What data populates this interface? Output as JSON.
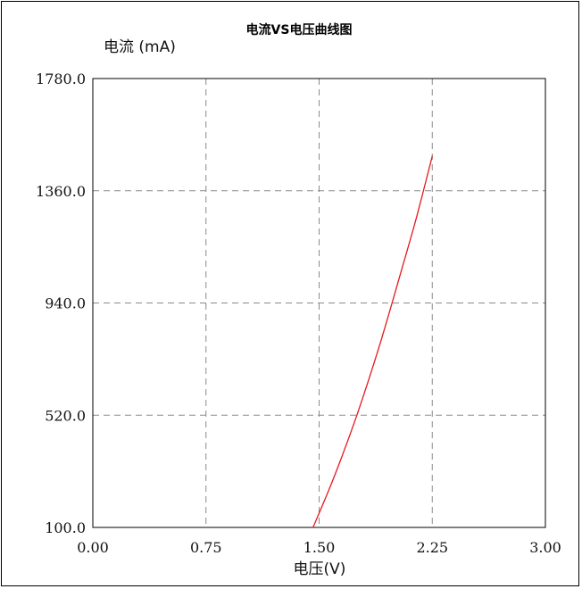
{
  "chart_data": {
    "type": "line",
    "title": "电流VS电压曲线图",
    "xlabel": "电压(V)",
    "ylabel": "电流 (mA)",
    "xlim": [
      0,
      3
    ],
    "ylim": [
      100,
      1780
    ],
    "x_ticks": [
      "0.00",
      "0.75",
      "1.50",
      "2.25",
      "3.00"
    ],
    "y_ticks": [
      "1780.0",
      "1360.0",
      "940.0",
      "520.0",
      "100.0"
    ],
    "x_tick_values": [
      0,
      0.75,
      1.5,
      2.25,
      3.0
    ],
    "y_tick_values": [
      1780,
      1360,
      940,
      520,
      100
    ],
    "grid": true,
    "series": [
      {
        "color": "#e8181c",
        "x": [
          1.46,
          1.6,
          1.75,
          1.9,
          2.05,
          2.15,
          2.25
        ],
        "y": [
          100,
          290,
          520,
          780,
          1070,
          1270,
          1490
        ]
      }
    ]
  }
}
